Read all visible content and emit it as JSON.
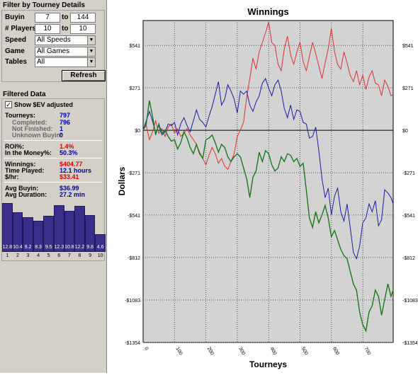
{
  "filter": {
    "title": "Filter by Tourney Details",
    "buyin": {
      "label": "Buyin",
      "from": "7",
      "to_word": "to",
      "to": "144"
    },
    "players": {
      "label": "# Players",
      "from": "10",
      "to_word": "to",
      "to": "10"
    },
    "speed": {
      "label": "Speed",
      "value": "All Speeds"
    },
    "game": {
      "label": "Game",
      "value": "All Games"
    },
    "tables": {
      "label": "Tables",
      "value": "All"
    },
    "refresh_label": "Refresh"
  },
  "filtered": {
    "title": "Filtered Data",
    "show_ev_label": "Show $EV adjusted",
    "show_ev_checked": true,
    "tourneys": {
      "label": "Tourneys:",
      "value": "797"
    },
    "completed": {
      "label": "Completed:",
      "value": "796"
    },
    "not_finished": {
      "label": "Not Finished:",
      "value": "1"
    },
    "unknown_buyin": {
      "label": "Unknown Buyin:",
      "value": "0"
    },
    "roi": {
      "label": "ROI%:",
      "value": "1.4%"
    },
    "itm": {
      "label": "In the Money%:",
      "value": "50.3%"
    },
    "winnings": {
      "label": "Winnings:",
      "value": "$404.77"
    },
    "time_played": {
      "label": "Time Played:",
      "value": "12.1 hours"
    },
    "per_hr": {
      "label": "$/hr:",
      "value": "$33.41"
    },
    "avg_buyin": {
      "label": "Avg Buyin:",
      "value": "$36.99"
    },
    "avg_duration": {
      "label": "Avg Duration:",
      "value": "27.2 min"
    }
  },
  "histogram": {
    "categories": [
      "1",
      "2",
      "3",
      "4",
      "5",
      "6",
      "7",
      "8",
      "9",
      "10"
    ],
    "values": [
      12.8,
      10.4,
      9.2,
      8.3,
      9.5,
      12.3,
      10.8,
      12.2,
      9.8,
      4.6
    ],
    "labels": [
      "12.8",
      "10.4",
      "9.2",
      "8.3",
      "9.5",
      "12.3",
      "10.8",
      "12.2",
      "9.8",
      "4.6"
    ],
    "bar_color": "#3a2f8a"
  },
  "chart_data": {
    "type": "line",
    "title": "Winnings",
    "xlabel": "Tourneys",
    "ylabel": "Dollars",
    "xlim": [
      0,
      797
    ],
    "ylim": [
      -1354,
      700
    ],
    "x_ticks": [
      0,
      100,
      200,
      300,
      400,
      500,
      600,
      700
    ],
    "x_tick_labels": [
      "0",
      "100",
      "200",
      "300",
      "400",
      "500",
      "600",
      "700"
    ],
    "y_ticks": [
      541,
      271,
      0,
      -271,
      -541,
      -812,
      -1083,
      -1354
    ],
    "y_tick_labels": [
      "$541",
      "$271",
      "$0",
      "-$271",
      "-$541",
      "-$812",
      "-$1083",
      "-$1354"
    ],
    "grid": true,
    "series": [
      {
        "color": "#e03030",
        "points": [
          [
            0,
            0
          ],
          [
            10,
            30
          ],
          [
            20,
            -60
          ],
          [
            30,
            -10
          ],
          [
            40,
            60
          ],
          [
            50,
            -20
          ],
          [
            60,
            10
          ],
          [
            70,
            -40
          ],
          [
            80,
            20
          ],
          [
            90,
            40
          ],
          [
            100,
            -20
          ],
          [
            110,
            10
          ],
          [
            120,
            -40
          ],
          [
            130,
            -20
          ],
          [
            140,
            10
          ],
          [
            150,
            -30
          ],
          [
            160,
            -60
          ],
          [
            170,
            -90
          ],
          [
            180,
            -140
          ],
          [
            190,
            -180
          ],
          [
            200,
            -220
          ],
          [
            210,
            -160
          ],
          [
            220,
            -110
          ],
          [
            230,
            -150
          ],
          [
            240,
            -210
          ],
          [
            250,
            -180
          ],
          [
            260,
            -230
          ],
          [
            270,
            -250
          ],
          [
            280,
            -200
          ],
          [
            290,
            -150
          ],
          [
            300,
            -40
          ],
          [
            310,
            0
          ],
          [
            320,
            50
          ],
          [
            330,
            210
          ],
          [
            340,
            330
          ],
          [
            350,
            460
          ],
          [
            360,
            390
          ],
          [
            370,
            500
          ],
          [
            380,
            560
          ],
          [
            390,
            620
          ],
          [
            400,
            690
          ],
          [
            410,
            560
          ],
          [
            420,
            540
          ],
          [
            430,
            420
          ],
          [
            440,
            380
          ],
          [
            450,
            520
          ],
          [
            460,
            600
          ],
          [
            470,
            480
          ],
          [
            480,
            420
          ],
          [
            490,
            500
          ],
          [
            500,
            560
          ],
          [
            510,
            440
          ],
          [
            520,
            380
          ],
          [
            530,
            470
          ],
          [
            540,
            560
          ],
          [
            550,
            490
          ],
          [
            560,
            410
          ],
          [
            570,
            330
          ],
          [
            580,
            430
          ],
          [
            590,
            520
          ],
          [
            600,
            650
          ],
          [
            610,
            500
          ],
          [
            620,
            420
          ],
          [
            630,
            390
          ],
          [
            640,
            500
          ],
          [
            650,
            430
          ],
          [
            660,
            350
          ],
          [
            670,
            310
          ],
          [
            680,
            380
          ],
          [
            690,
            290
          ],
          [
            700,
            350
          ],
          [
            710,
            260
          ],
          [
            720,
            340
          ],
          [
            730,
            380
          ],
          [
            740,
            300
          ],
          [
            750,
            290
          ],
          [
            760,
            220
          ],
          [
            770,
            320
          ],
          [
            780,
            280
          ],
          [
            790,
            220
          ],
          [
            797,
            230
          ]
        ]
      },
      {
        "color": "#1c1ca0",
        "points": [
          [
            0,
            0
          ],
          [
            10,
            60
          ],
          [
            20,
            120
          ],
          [
            30,
            60
          ],
          [
            40,
            -20
          ],
          [
            50,
            30
          ],
          [
            60,
            -30
          ],
          [
            70,
            -10
          ],
          [
            80,
            40
          ],
          [
            90,
            30
          ],
          [
            100,
            50
          ],
          [
            110,
            -30
          ],
          [
            120,
            40
          ],
          [
            130,
            80
          ],
          [
            140,
            30
          ],
          [
            150,
            -10
          ],
          [
            160,
            60
          ],
          [
            170,
            130
          ],
          [
            180,
            70
          ],
          [
            190,
            50
          ],
          [
            200,
            20
          ],
          [
            210,
            90
          ],
          [
            220,
            150
          ],
          [
            230,
            230
          ],
          [
            240,
            310
          ],
          [
            250,
            160
          ],
          [
            260,
            200
          ],
          [
            270,
            290
          ],
          [
            280,
            250
          ],
          [
            290,
            200
          ],
          [
            300,
            110
          ],
          [
            310,
            250
          ],
          [
            320,
            230
          ],
          [
            330,
            250
          ],
          [
            340,
            160
          ],
          [
            350,
            120
          ],
          [
            360,
            180
          ],
          [
            370,
            220
          ],
          [
            380,
            300
          ],
          [
            390,
            330
          ],
          [
            400,
            270
          ],
          [
            410,
            220
          ],
          [
            420,
            290
          ],
          [
            430,
            320
          ],
          [
            440,
            250
          ],
          [
            450,
            140
          ],
          [
            460,
            80
          ],
          [
            470,
            160
          ],
          [
            480,
            70
          ],
          [
            490,
            130
          ],
          [
            500,
            120
          ],
          [
            510,
            50
          ],
          [
            520,
            40
          ],
          [
            530,
            -50
          ],
          [
            540,
            -40
          ],
          [
            550,
            20
          ],
          [
            560,
            -130
          ],
          [
            570,
            -310
          ],
          [
            580,
            -430
          ],
          [
            590,
            -370
          ],
          [
            600,
            -540
          ],
          [
            610,
            -420
          ],
          [
            620,
            -370
          ],
          [
            630,
            -520
          ],
          [
            640,
            -580
          ],
          [
            650,
            -470
          ],
          [
            660,
            -620
          ],
          [
            670,
            -780
          ],
          [
            680,
            -820
          ],
          [
            690,
            -740
          ],
          [
            700,
            -590
          ],
          [
            710,
            -560
          ],
          [
            720,
            -470
          ],
          [
            730,
            -520
          ],
          [
            740,
            -450
          ],
          [
            750,
            -610
          ],
          [
            760,
            -570
          ],
          [
            770,
            -380
          ],
          [
            780,
            -400
          ],
          [
            790,
            -430
          ],
          [
            797,
            -470
          ]
        ]
      },
      {
        "color": "#1a7a1a",
        "points": [
          [
            0,
            0
          ],
          [
            10,
            40
          ],
          [
            20,
            190
          ],
          [
            30,
            90
          ],
          [
            40,
            -30
          ],
          [
            50,
            40
          ],
          [
            60,
            -20
          ],
          [
            70,
            0
          ],
          [
            80,
            -40
          ],
          [
            90,
            -70
          ],
          [
            100,
            -60
          ],
          [
            110,
            -120
          ],
          [
            120,
            -80
          ],
          [
            130,
            -10
          ],
          [
            140,
            -50
          ],
          [
            150,
            -110
          ],
          [
            160,
            -150
          ],
          [
            170,
            -90
          ],
          [
            180,
            -150
          ],
          [
            190,
            -180
          ],
          [
            200,
            -60
          ],
          [
            210,
            -50
          ],
          [
            220,
            -30
          ],
          [
            230,
            -80
          ],
          [
            240,
            -140
          ],
          [
            250,
            -90
          ],
          [
            260,
            -110
          ],
          [
            270,
            -170
          ],
          [
            280,
            -200
          ],
          [
            290,
            -170
          ],
          [
            300,
            -150
          ],
          [
            310,
            -170
          ],
          [
            320,
            -240
          ],
          [
            330,
            -310
          ],
          [
            340,
            -430
          ],
          [
            350,
            -300
          ],
          [
            360,
            -260
          ],
          [
            370,
            -140
          ],
          [
            380,
            -200
          ],
          [
            390,
            -130
          ],
          [
            400,
            -150
          ],
          [
            410,
            -220
          ],
          [
            420,
            -260
          ],
          [
            430,
            -240
          ],
          [
            440,
            -170
          ],
          [
            450,
            -200
          ],
          [
            460,
            -150
          ],
          [
            470,
            -160
          ],
          [
            480,
            -200
          ],
          [
            490,
            -180
          ],
          [
            500,
            -230
          ],
          [
            510,
            -210
          ],
          [
            520,
            -380
          ],
          [
            530,
            -560
          ],
          [
            540,
            -620
          ],
          [
            550,
            -520
          ],
          [
            560,
            -590
          ],
          [
            570,
            -540
          ],
          [
            580,
            -480
          ],
          [
            590,
            -560
          ],
          [
            600,
            -680
          ],
          [
            610,
            -640
          ],
          [
            620,
            -700
          ],
          [
            630,
            -760
          ],
          [
            640,
            -800
          ],
          [
            650,
            -820
          ],
          [
            660,
            -900
          ],
          [
            670,
            -980
          ],
          [
            680,
            -1020
          ],
          [
            690,
            -1160
          ],
          [
            700,
            -1240
          ],
          [
            710,
            -1280
          ],
          [
            720,
            -1160
          ],
          [
            730,
            -1120
          ],
          [
            740,
            -1020
          ],
          [
            750,
            -1060
          ],
          [
            760,
            -1180
          ],
          [
            770,
            -1080
          ],
          [
            780,
            -980
          ],
          [
            790,
            -1060
          ],
          [
            797,
            -1020
          ]
        ]
      }
    ]
  }
}
